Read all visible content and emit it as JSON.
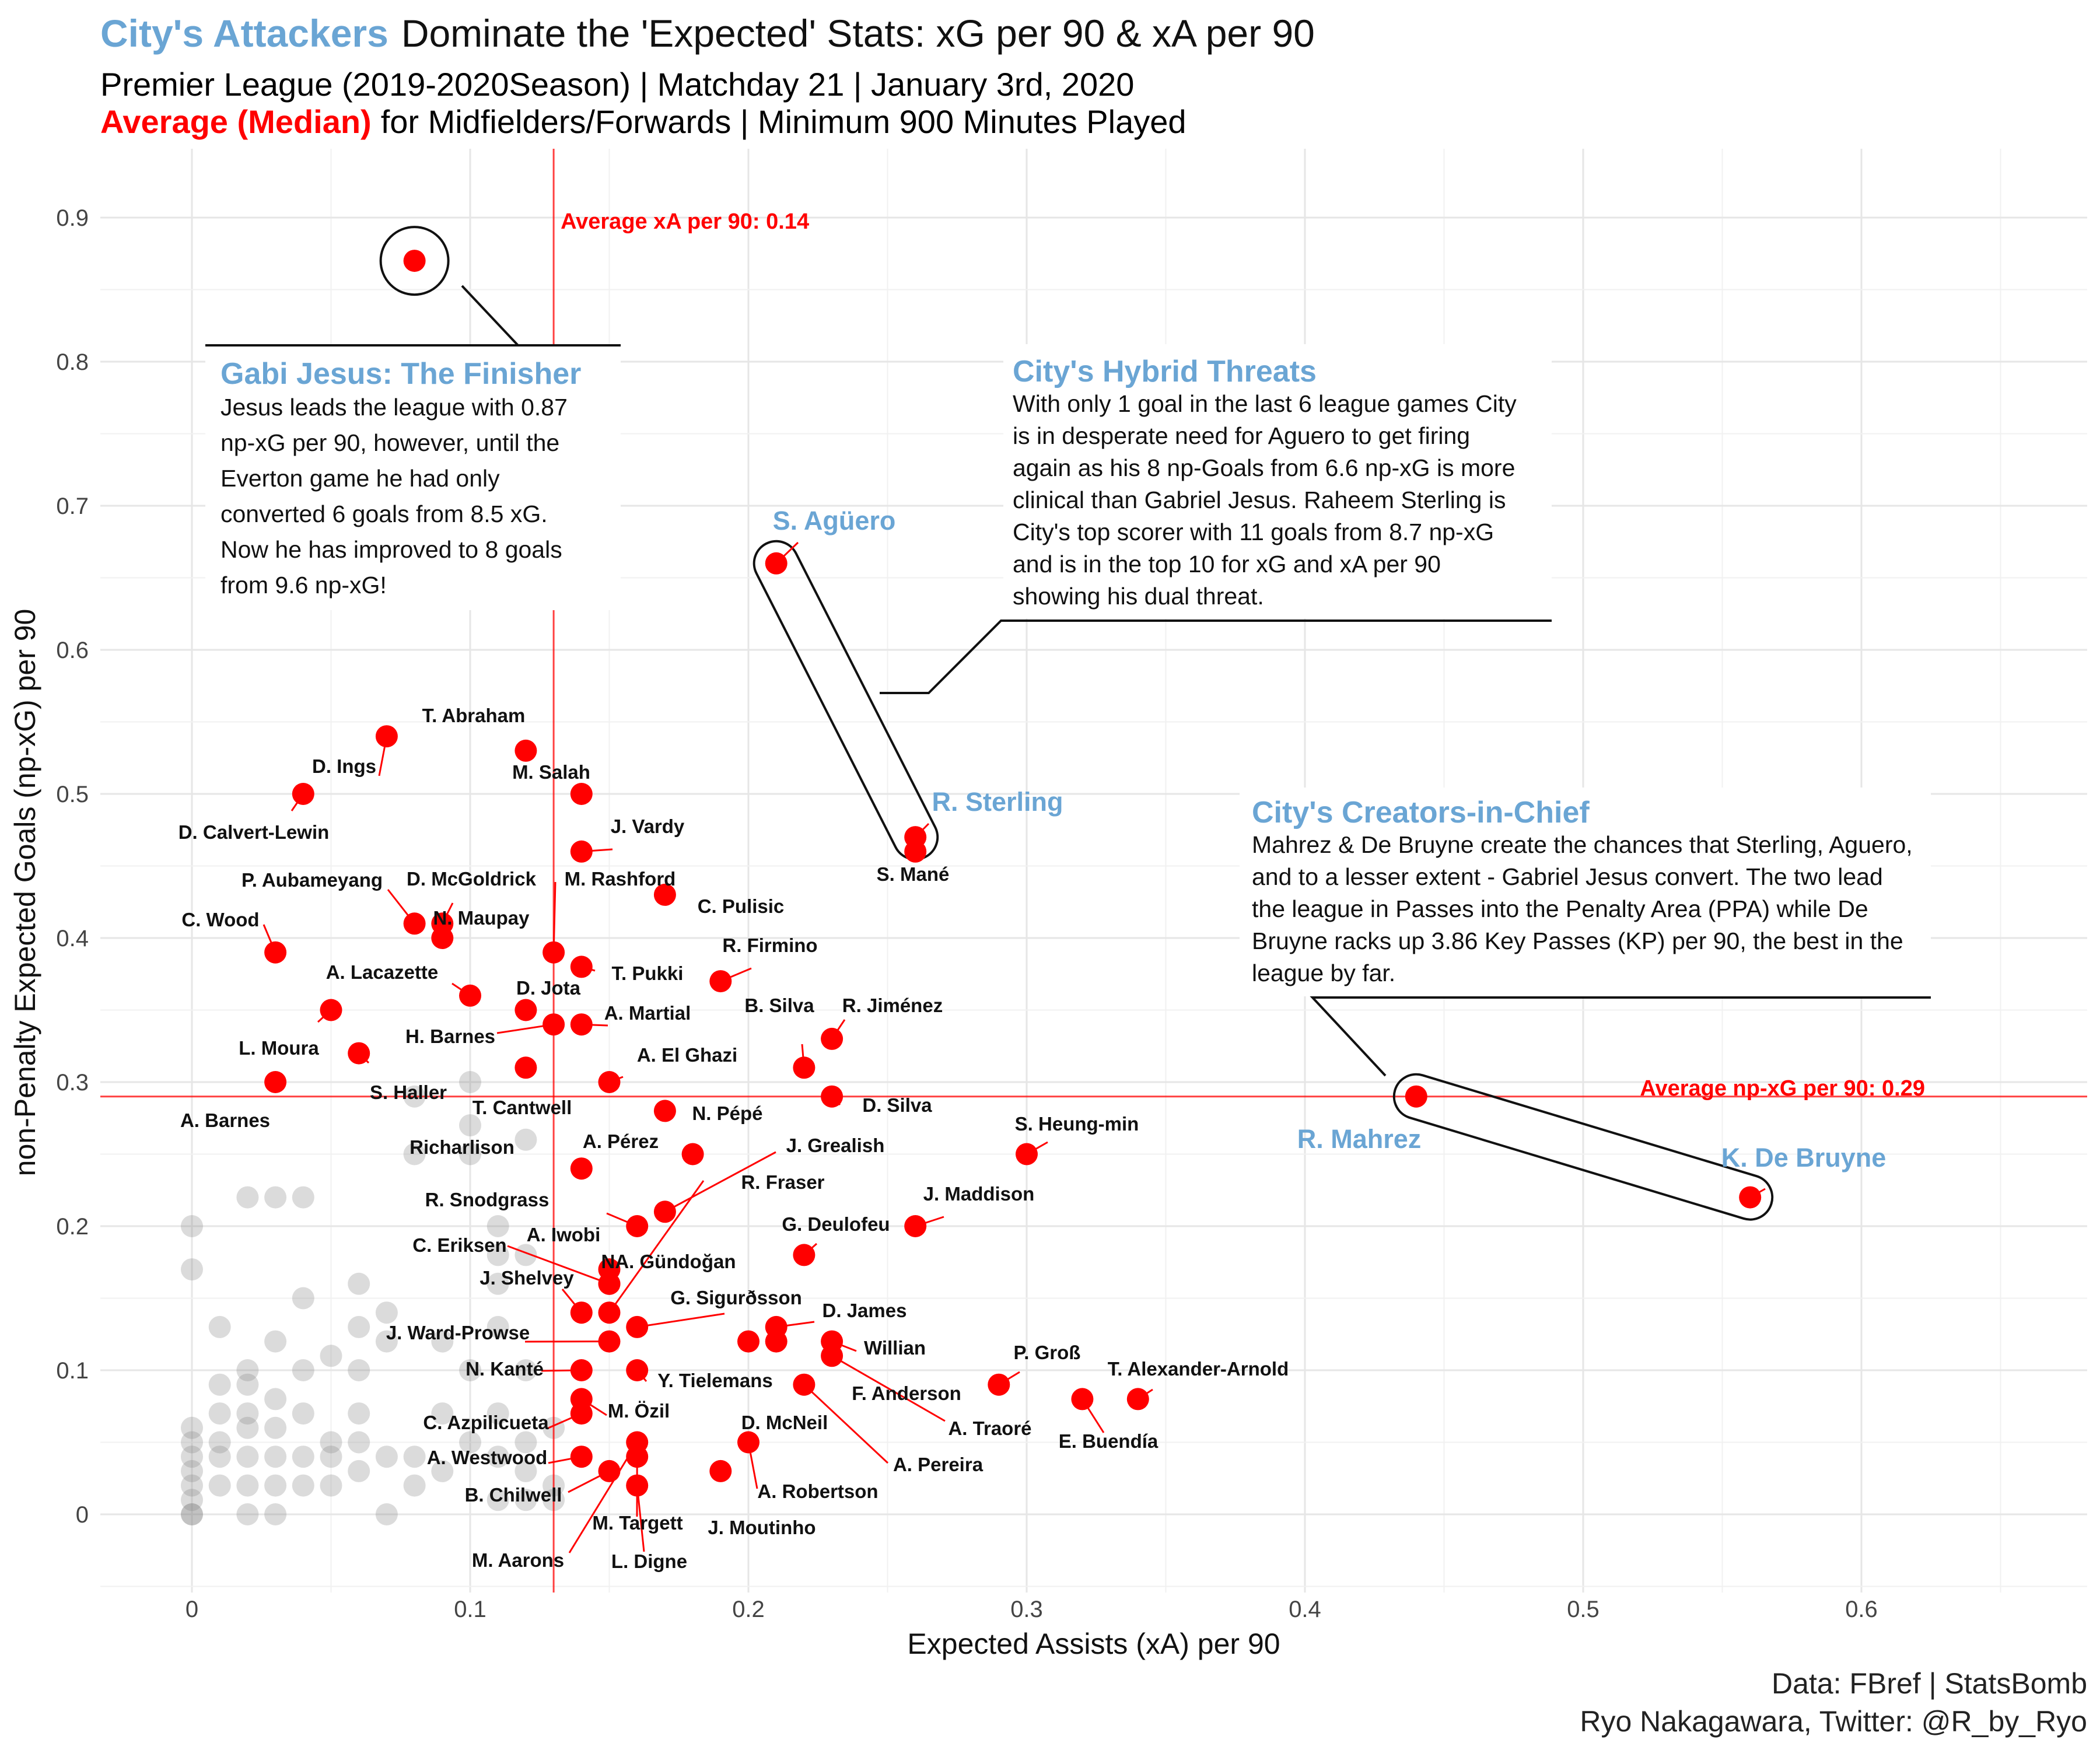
{
  "header": {
    "title_highlight": "City's Attackers",
    "title_rest": "Dominate the 'Expected' Stats: xG per 90 & xA per 90",
    "subtitle": "Premier League (2019-2020Season) | Matchday 21 | January 3rd, 2020",
    "subtitle2_highlight": "Average (Median)",
    "subtitle2_rest": "for Midfielders/Forwards | Minimum 900 Minutes Played"
  },
  "caption": {
    "line1": "Data: FBref | StatsBomb",
    "line2": "Ryo Nakagawara, Twitter: @R_by_Ryo"
  },
  "colors": {
    "highlight": "#ff0000",
    "city_blue": "#6aa5d4",
    "background_points": "#888888"
  },
  "annotations": [
    {
      "id": "jesus",
      "title": "Gabi Jesus: The Finisher",
      "lines": [
        "Jesus leads the league with 0.87",
        "np-xG per 90, however, until the",
        "Everton game he had only",
        "converted 6 goals from 8.5 xG.",
        "Now he has improved to 8 goals",
        "from 9.6 np-xG!"
      ]
    },
    {
      "id": "hybrid",
      "title": "City's Hybrid Threats",
      "lines": [
        "With only 1 goal in the last 6 league games City",
        "is in desperate need for Aguero to get firing",
        "again as his 8 np-Goals from 6.6 np-xG is more",
        "clinical than Gabriel Jesus. Raheem Sterling is",
        "City's top scorer with 11 goals from 8.7 np-xG",
        "and is in the top 10 for xG and xA per 90",
        "showing his dual threat."
      ]
    },
    {
      "id": "creators",
      "title": "City's Creators-in-Chief",
      "lines": [
        "Mahrez & De Bruyne create the chances that Sterling, Aguero,",
        "and to a lesser extent - Gabriel Jesus convert. The two lead",
        "the league in Passes into the Penalty Area (PPA) while De",
        "Bruyne racks up 3.86 Key Passes (KP) per 90, the best in the",
        "league by far."
      ]
    }
  ],
  "chart_data": {
    "type": "scatter",
    "xlabel": "Expected Assists (xA) per 90",
    "ylabel": "non-Penalty Expected Goals (np-xG) per 90",
    "x_ticks": [
      "0",
      "0.1",
      "0.2",
      "0.3",
      "0.4",
      "0.5",
      "0.6"
    ],
    "y_ticks": [
      "0",
      "0.1",
      "0.2",
      "0.3",
      "0.4",
      "0.5",
      "0.6",
      "0.7",
      "0.8",
      "0.9"
    ],
    "xlim": [
      -0.03,
      0.68
    ],
    "ylim": [
      -0.05,
      0.95
    ],
    "grid": true,
    "reference_lines": [
      {
        "axis": "x",
        "value": 0.14,
        "label": "Average xA per 90: 0.14"
      },
      {
        "axis": "y",
        "value": 0.29,
        "label": "Average np-xG per 90: 0.29"
      }
    ],
    "highlighted": [
      {
        "name": "Gabriel Jesus",
        "x": 0.08,
        "y": 0.87
      },
      {
        "name": "S. Agüero",
        "x": 0.21,
        "y": 0.66
      },
      {
        "name": "R. Sterling",
        "x": 0.26,
        "y": 0.47
      },
      {
        "name": "S. Mané",
        "x": 0.26,
        "y": 0.46
      },
      {
        "name": "T. Abraham",
        "x": 0.12,
        "y": 0.53
      },
      {
        "name": "D. Ings",
        "x": 0.07,
        "y": 0.54
      },
      {
        "name": "M. Salah",
        "x": 0.14,
        "y": 0.5
      },
      {
        "name": "D. Calvert-Lewin",
        "x": 0.04,
        "y": 0.5
      },
      {
        "name": "J. Vardy",
        "x": 0.14,
        "y": 0.46
      },
      {
        "name": "M. Rashford",
        "x": 0.13,
        "y": 0.39
      },
      {
        "name": "C. Pulisic",
        "x": 0.17,
        "y": 0.43
      },
      {
        "name": "D. McGoldrick",
        "x": 0.09,
        "y": 0.41
      },
      {
        "name": "P. Aubameyang",
        "x": 0.08,
        "y": 0.41
      },
      {
        "name": "N. Maupay",
        "x": 0.09,
        "y": 0.4
      },
      {
        "name": "C. Wood",
        "x": 0.03,
        "y": 0.39
      },
      {
        "name": "T. Pukki",
        "x": 0.14,
        "y": 0.38
      },
      {
        "name": "R. Firmino",
        "x": 0.19,
        "y": 0.37
      },
      {
        "name": "A. Lacazette",
        "x": 0.1,
        "y": 0.36
      },
      {
        "name": "D. Jota",
        "x": 0.12,
        "y": 0.35
      },
      {
        "name": "A. Martial",
        "x": 0.14,
        "y": 0.34
      },
      {
        "name": "H. Barnes",
        "x": 0.13,
        "y": 0.34
      },
      {
        "name": "R. Jiménez",
        "x": 0.23,
        "y": 0.33
      },
      {
        "name": "B. Silva",
        "x": 0.22,
        "y": 0.31
      },
      {
        "name": "L. Moura",
        "x": 0.05,
        "y": 0.35
      },
      {
        "name": "S. Haller",
        "x": 0.06,
        "y": 0.32
      },
      {
        "name": "A. El Ghazi",
        "x": 0.15,
        "y": 0.3
      },
      {
        "name": "T. Cantwell",
        "x": 0.12,
        "y": 0.31
      },
      {
        "name": "A. Barnes",
        "x": 0.03,
        "y": 0.3
      },
      {
        "name": "D. Silva",
        "x": 0.23,
        "y": 0.29
      },
      {
        "name": "R. Mahrez",
        "x": 0.44,
        "y": 0.29
      },
      {
        "name": "N. Pépé",
        "x": 0.17,
        "y": 0.28
      },
      {
        "name": "S. Heung-min",
        "x": 0.3,
        "y": 0.25
      },
      {
        "name": "A. Pérez",
        "x": 0.18,
        "y": 0.25
      },
      {
        "name": "Richarlison",
        "x": 0.14,
        "y": 0.24
      },
      {
        "name": "K. De Bruyne",
        "x": 0.56,
        "y": 0.22
      },
      {
        "name": "J. Grealish",
        "x": 0.17,
        "y": 0.21
      },
      {
        "name": "J. Maddison",
        "x": 0.26,
        "y": 0.2
      },
      {
        "name": "R. Snodgrass",
        "x": 0.16,
        "y": 0.2
      },
      {
        "name": "G. Deulofeu",
        "x": 0.22,
        "y": 0.18
      },
      {
        "name": "A. Iwobi",
        "x": 0.15,
        "y": 0.17
      },
      {
        "name": "C. Eriksen",
        "x": 0.15,
        "y": 0.16
      },
      {
        "name": "NA. Gündoğan",
        "x": 0.15,
        "y": 0.16
      },
      {
        "name": "J. Shelvey",
        "x": 0.14,
        "y": 0.14
      },
      {
        "name": "R. Fraser",
        "x": 0.15,
        "y": 0.14
      },
      {
        "name": "G. Sigurðsson",
        "x": 0.16,
        "y": 0.13
      },
      {
        "name": "D. James",
        "x": 0.21,
        "y": 0.13
      },
      {
        "name": "J. Ward-Prowse",
        "x": 0.15,
        "y": 0.12
      },
      {
        "name": "Willian",
        "x": 0.23,
        "y": 0.12
      },
      {
        "name": "F. Anderson",
        "x": 0.21,
        "y": 0.12
      },
      {
        "name": "A. Traoré",
        "x": 0.23,
        "y": 0.11
      },
      {
        "name": "D. McNeil",
        "x": 0.2,
        "y": 0.12
      },
      {
        "name": "P. Groß",
        "x": 0.29,
        "y": 0.09
      },
      {
        "name": "T. Alexander-Arnold",
        "x": 0.34,
        "y": 0.08
      },
      {
        "name": "E. Buendía",
        "x": 0.32,
        "y": 0.08
      },
      {
        "name": "A. Pereira",
        "x": 0.22,
        "y": 0.09
      },
      {
        "name": "N. Kanté",
        "x": 0.14,
        "y": 0.1
      },
      {
        "name": "Y. Tielemans",
        "x": 0.16,
        "y": 0.1
      },
      {
        "name": "M. Özil",
        "x": 0.14,
        "y": 0.08
      },
      {
        "name": "C. Azpilicueta",
        "x": 0.14,
        "y": 0.07
      },
      {
        "name": "A. Westwood",
        "x": 0.14,
        "y": 0.04
      },
      {
        "name": "B. Chilwell",
        "x": 0.15,
        "y": 0.03
      },
      {
        "name": "M. Targett",
        "x": 0.16,
        "y": 0.04
      },
      {
        "name": "A. Robertson",
        "x": 0.2,
        "y": 0.05
      },
      {
        "name": "J. Moutinho",
        "x": 0.19,
        "y": 0.03
      },
      {
        "name": "L. Digne",
        "x": 0.16,
        "y": 0.02
      },
      {
        "name": "M. Aarons",
        "x": 0.16,
        "y": 0.05
      }
    ],
    "city_players": [
      "Gabriel Jesus",
      "S. Agüero",
      "R. Sterling",
      "R. Mahrez",
      "K. De Bruyne"
    ],
    "background_points": [
      [
        0,
        0
      ],
      [
        0,
        0
      ],
      [
        0,
        0.01
      ],
      [
        0,
        0.02
      ],
      [
        0,
        0.03
      ],
      [
        0,
        0.04
      ],
      [
        0,
        0.05
      ],
      [
        0,
        0.06
      ],
      [
        0,
        0.17
      ],
      [
        0,
        0.2
      ],
      [
        0.01,
        0.02
      ],
      [
        0.01,
        0.04
      ],
      [
        0.01,
        0.05
      ],
      [
        0.01,
        0.07
      ],
      [
        0.01,
        0.09
      ],
      [
        0.01,
        0.13
      ],
      [
        0.02,
        0
      ],
      [
        0.02,
        0.02
      ],
      [
        0.02,
        0.04
      ],
      [
        0.02,
        0.06
      ],
      [
        0.02,
        0.07
      ],
      [
        0.02,
        0.09
      ],
      [
        0.02,
        0.1
      ],
      [
        0.02,
        0.22
      ],
      [
        0.03,
        0
      ],
      [
        0.03,
        0.02
      ],
      [
        0.03,
        0.04
      ],
      [
        0.03,
        0.06
      ],
      [
        0.03,
        0.08
      ],
      [
        0.03,
        0.12
      ],
      [
        0.03,
        0.22
      ],
      [
        0.04,
        0.02
      ],
      [
        0.04,
        0.04
      ],
      [
        0.04,
        0.07
      ],
      [
        0.04,
        0.1
      ],
      [
        0.04,
        0.15
      ],
      [
        0.04,
        0.22
      ],
      [
        0.05,
        0.02
      ],
      [
        0.05,
        0.05
      ],
      [
        0.05,
        0.04
      ],
      [
        0.05,
        0.11
      ],
      [
        0.06,
        0.03
      ],
      [
        0.06,
        0.05
      ],
      [
        0.06,
        0.07
      ],
      [
        0.06,
        0.1
      ],
      [
        0.06,
        0.13
      ],
      [
        0.06,
        0.16
      ],
      [
        0.07,
        0
      ],
      [
        0.07,
        0.04
      ],
      [
        0.07,
        0.14
      ],
      [
        0.07,
        0.12
      ],
      [
        0.08,
        0.02
      ],
      [
        0.08,
        0.04
      ],
      [
        0.08,
        0.25
      ],
      [
        0.08,
        0.29
      ],
      [
        0.09,
        0.03
      ],
      [
        0.09,
        0.07
      ],
      [
        0.09,
        0.12
      ],
      [
        0.1,
        0.05
      ],
      [
        0.1,
        0.1
      ],
      [
        0.1,
        0.25
      ],
      [
        0.1,
        0.27
      ],
      [
        0.1,
        0.3
      ],
      [
        0.11,
        0.01
      ],
      [
        0.11,
        0.04
      ],
      [
        0.11,
        0.07
      ],
      [
        0.11,
        0.13
      ],
      [
        0.11,
        0.16
      ],
      [
        0.11,
        0.18
      ],
      [
        0.11,
        0.2
      ],
      [
        0.12,
        0.01
      ],
      [
        0.12,
        0.03
      ],
      [
        0.12,
        0.05
      ],
      [
        0.12,
        0.1
      ],
      [
        0.12,
        0.18
      ],
      [
        0.12,
        0.26
      ],
      [
        0.13,
        0.01
      ],
      [
        0.13,
        0.02
      ],
      [
        0.13,
        0.06
      ]
    ]
  }
}
